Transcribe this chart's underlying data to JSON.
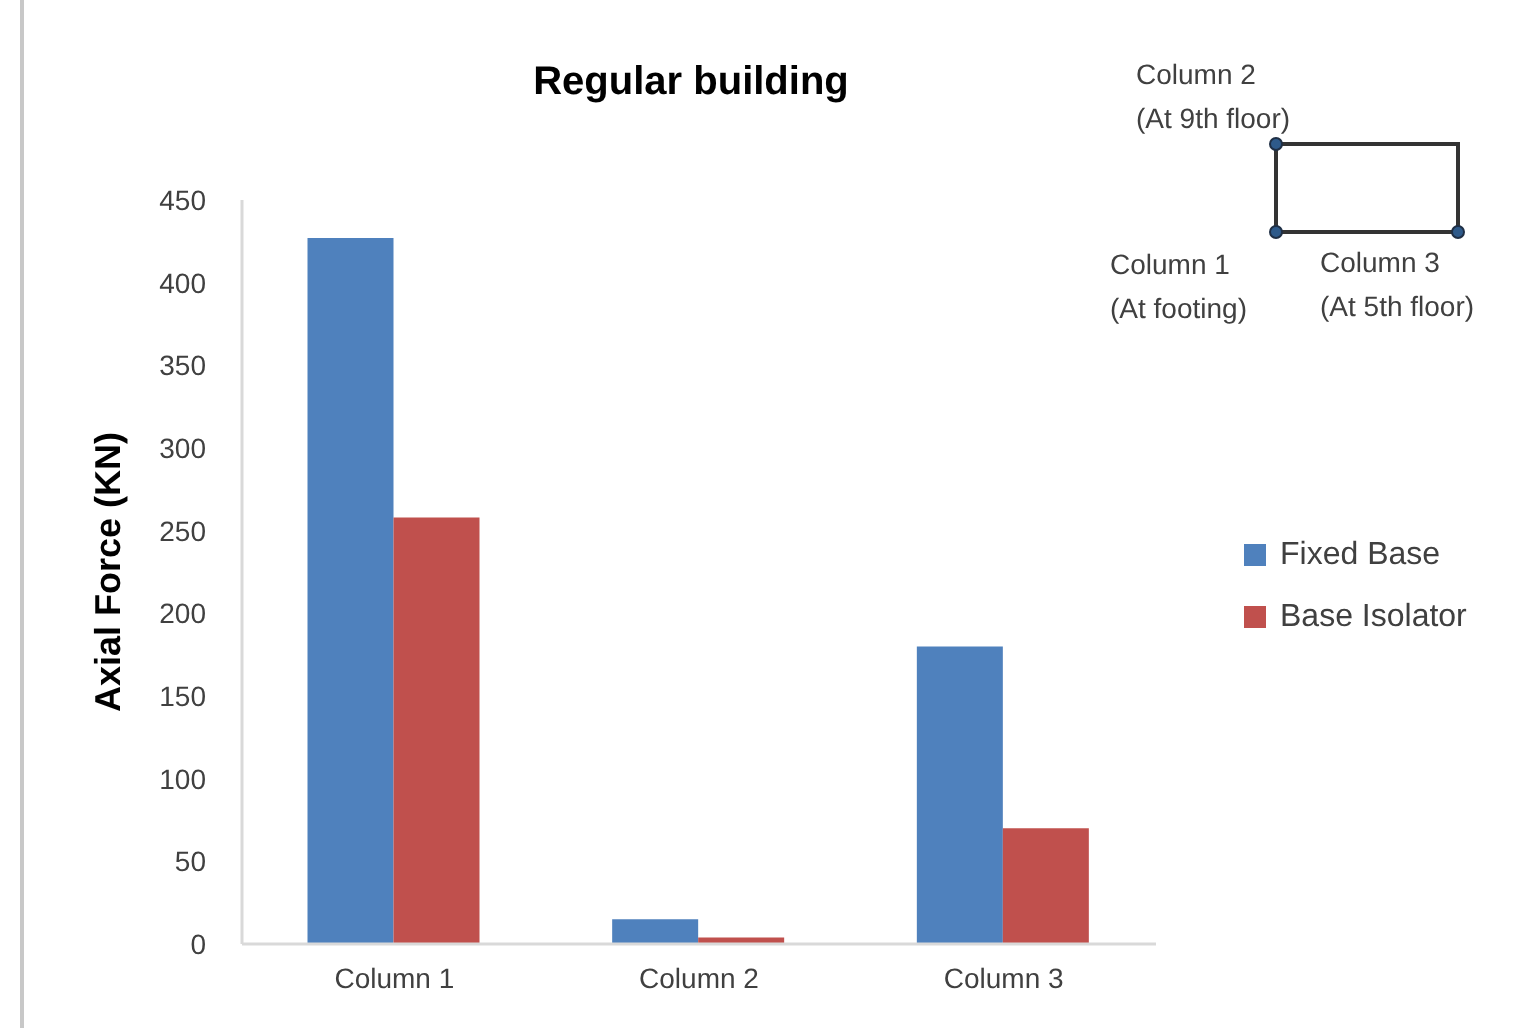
{
  "chart_data": {
    "type": "bar",
    "title": "Regular building",
    "ylabel": "Axial Force (KN)",
    "categories": [
      "Column 1",
      "Column 2",
      "Column 3"
    ],
    "series": [
      {
        "name": "Fixed Base",
        "color": "#4f81bd",
        "values": [
          427,
          15,
          180
        ]
      },
      {
        "name": "Base Isolator",
        "color": "#c0504d",
        "values": [
          258,
          4,
          70
        ]
      }
    ],
    "ylim": [
      0,
      450
    ],
    "yticks": [
      0,
      50,
      100,
      150,
      200,
      250,
      300,
      350,
      400,
      450
    ],
    "grid": false,
    "legend": "right",
    "annotations": [
      "Column 2\n(At 9th floor)",
      "Column 1\n(At footing)",
      "Column 3\n(At 5th floor)"
    ]
  }
}
